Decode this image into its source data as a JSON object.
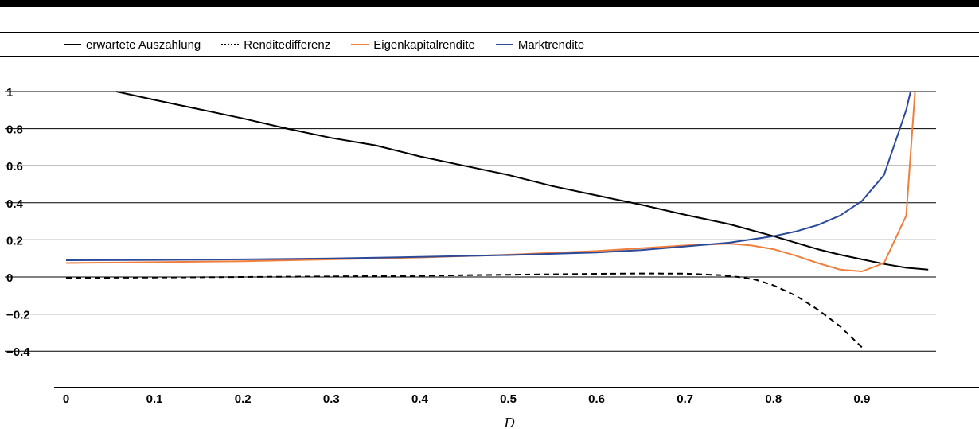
{
  "chart_data": {
    "type": "line",
    "xlabel": "D",
    "ylabel": "",
    "xlim": [
      0,
      0.98
    ],
    "ylim": [
      -0.5,
      1.05
    ],
    "x_ticks": [
      "0",
      "0.1",
      "0.2",
      "0.3",
      "0.4",
      "0.5",
      "0.6",
      "0.7",
      "0.8",
      "0.9"
    ],
    "y_ticks": [
      "1",
      "0.8",
      "0.6",
      "0.4",
      "0.2",
      "0",
      "−0.2",
      "−0.4"
    ],
    "y_tick_values": [
      1,
      0.8,
      0.6,
      0.4,
      0.2,
      0,
      -0.2,
      -0.4
    ],
    "grid": true,
    "legend_position": "top-left",
    "series": [
      {
        "name": "erwartete Auszahlung",
        "color": "#000000",
        "style": "solid",
        "x": [
          0.057,
          0.1,
          0.15,
          0.2,
          0.25,
          0.3,
          0.35,
          0.4,
          0.45,
          0.5,
          0.55,
          0.6,
          0.65,
          0.7,
          0.75,
          0.8,
          0.825,
          0.85,
          0.875,
          0.9,
          0.925,
          0.95,
          0.975
        ],
        "y": [
          1.0,
          0.955,
          0.905,
          0.855,
          0.8,
          0.75,
          0.71,
          0.65,
          0.6,
          0.55,
          0.49,
          0.44,
          0.39,
          0.335,
          0.285,
          0.22,
          0.185,
          0.15,
          0.12,
          0.095,
          0.07,
          0.05,
          0.04
        ]
      },
      {
        "name": "Renditedifferenz",
        "color": "#000000",
        "style": "dashed",
        "x": [
          0,
          0.1,
          0.2,
          0.3,
          0.4,
          0.5,
          0.6,
          0.65,
          0.7,
          0.74,
          0.76,
          0.78,
          0.8,
          0.825,
          0.85,
          0.875,
          0.9
        ],
        "y": [
          -0.005,
          -0.003,
          0,
          0.003,
          0.007,
          0.012,
          0.017,
          0.019,
          0.018,
          0.01,
          0.0,
          -0.015,
          -0.045,
          -0.1,
          -0.175,
          -0.265,
          -0.38
        ]
      },
      {
        "name": "Eigenkapitalrendite",
        "color": "#f07f3c",
        "style": "solid",
        "x": [
          0,
          0.1,
          0.2,
          0.3,
          0.4,
          0.5,
          0.6,
          0.65,
          0.7,
          0.75,
          0.775,
          0.8,
          0.825,
          0.85,
          0.875,
          0.9,
          0.925,
          0.95,
          0.96
        ],
        "y": [
          0.075,
          0.08,
          0.085,
          0.095,
          0.105,
          0.12,
          0.14,
          0.155,
          0.17,
          0.18,
          0.17,
          0.15,
          0.115,
          0.075,
          0.04,
          0.03,
          0.075,
          0.33,
          1.0
        ]
      },
      {
        "name": "Marktrendite",
        "color": "#2c4a9a",
        "style": "solid",
        "x": [
          0,
          0.1,
          0.2,
          0.3,
          0.4,
          0.5,
          0.6,
          0.65,
          0.7,
          0.75,
          0.8,
          0.825,
          0.85,
          0.875,
          0.9,
          0.925,
          0.95,
          0.955
        ],
        "y": [
          0.09,
          0.092,
          0.095,
          0.1,
          0.108,
          0.118,
          0.132,
          0.145,
          0.165,
          0.185,
          0.22,
          0.245,
          0.28,
          0.33,
          0.41,
          0.55,
          0.9,
          1.0
        ]
      }
    ]
  }
}
